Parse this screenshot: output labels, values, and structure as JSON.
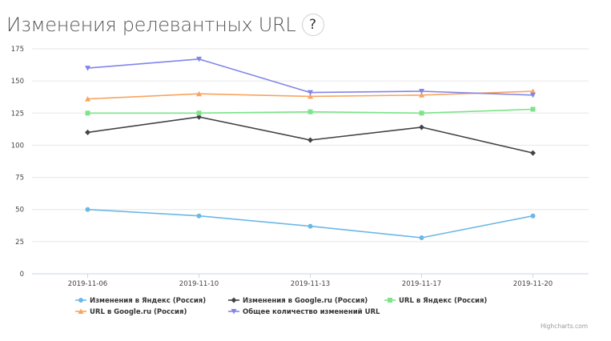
{
  "header": {
    "title": "Изменения релевантных URL",
    "help_label": "?"
  },
  "credits": "Highcharts.com",
  "chart_data": {
    "type": "line",
    "title": "Изменения релевантных URL",
    "xlabel": "",
    "ylabel": "",
    "ylim": [
      0,
      175
    ],
    "yticks": [
      0,
      25,
      50,
      75,
      100,
      125,
      150,
      175
    ],
    "categories": [
      "2019-11-06",
      "2019-11-10",
      "2019-11-13",
      "2019-11-17",
      "2019-11-20"
    ],
    "grid": true,
    "legend_placement": "bottom",
    "series": [
      {
        "name": "Изменения в Яндекс (Россия)",
        "color": "#6cb8e6",
        "marker": "circle",
        "values": [
          50,
          45,
          37,
          28,
          45
        ]
      },
      {
        "name": "Изменения в Google.ru (Россия)",
        "color": "#434348",
        "marker": "diamond",
        "values": [
          110,
          122,
          104,
          114,
          94
        ]
      },
      {
        "name": "URL в Яндекс (Россия)",
        "color": "#7de48a",
        "marker": "square",
        "values": [
          125,
          125,
          126,
          125,
          128
        ]
      },
      {
        "name": "URL в Google.ru (Россия)",
        "color": "#f8a45f",
        "marker": "triangle",
        "values": [
          136,
          140,
          138,
          139,
          142
        ]
      },
      {
        "name": "Общее количество изменений URL",
        "color": "#8085e9",
        "marker": "triangle-down",
        "values": [
          160,
          167,
          141,
          142,
          139
        ]
      }
    ]
  }
}
